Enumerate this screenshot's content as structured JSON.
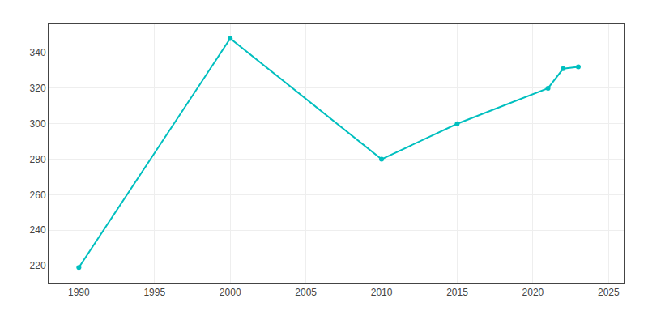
{
  "chart_data": {
    "type": "line",
    "x": [
      1990,
      2000,
      2010,
      2015,
      2021,
      2022,
      2023
    ],
    "values": [
      219,
      348,
      280,
      300,
      320,
      331,
      332
    ],
    "color": "#00BFBF",
    "marker": "circle",
    "xlim": [
      1988,
      2026
    ],
    "ylim": [
      210,
      356
    ],
    "xticks": [
      1990,
      1995,
      2000,
      2005,
      2010,
      2015,
      2020,
      2025
    ],
    "yticks": [
      220,
      240,
      260,
      280,
      300,
      320,
      340
    ],
    "grid": true
  }
}
